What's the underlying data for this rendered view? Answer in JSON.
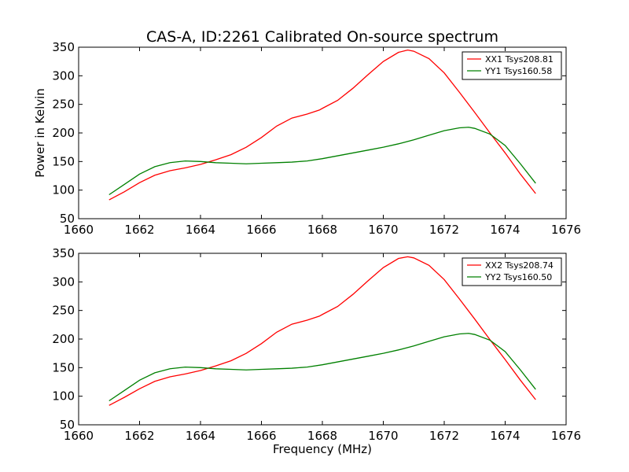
{
  "figure": {
    "title": "CAS-A, ID:2261 Calibrated On-source spectrum",
    "xlabel": "Frequency (MHz)",
    "ylabel": "Power in Kelvin"
  },
  "chart_data": [
    {
      "type": "line",
      "title": "CAS-A, ID:2261 Calibrated On-source spectrum",
      "xlabel": "",
      "ylabel": "Power in Kelvin",
      "xlim": [
        1660,
        1676
      ],
      "ylim": [
        50,
        350
      ],
      "x_ticks": [
        1660,
        1662,
        1664,
        1666,
        1668,
        1670,
        1672,
        1674,
        1676
      ],
      "y_ticks": [
        50,
        100,
        150,
        200,
        250,
        300,
        350
      ],
      "grid": false,
      "legend_position": "top-right",
      "series": [
        {
          "name": "XX1 Tsys208.81",
          "color": "#ff0000",
          "points": [
            [
              1661.0,
              83
            ],
            [
              1661.5,
              97
            ],
            [
              1662.0,
              113
            ],
            [
              1662.5,
              126
            ],
            [
              1663.0,
              134
            ],
            [
              1663.5,
              139
            ],
            [
              1664.0,
              145
            ],
            [
              1664.5,
              153
            ],
            [
              1665.0,
              162
            ],
            [
              1665.5,
              175
            ],
            [
              1666.0,
              192
            ],
            [
              1666.5,
              212
            ],
            [
              1667.0,
              226
            ],
            [
              1667.5,
              233
            ],
            [
              1667.9,
              240
            ],
            [
              1668.0,
              243
            ],
            [
              1668.5,
              257
            ],
            [
              1669.0,
              278
            ],
            [
              1669.5,
              302
            ],
            [
              1670.0,
              325
            ],
            [
              1670.5,
              341
            ],
            [
              1670.8,
              345
            ],
            [
              1671.0,
              343
            ],
            [
              1671.5,
              330
            ],
            [
              1672.0,
              305
            ],
            [
              1672.5,
              271
            ],
            [
              1673.0,
              236
            ],
            [
              1673.5,
              200
            ],
            [
              1674.0,
              165
            ],
            [
              1674.5,
              128
            ],
            [
              1675.0,
              94
            ]
          ]
        },
        {
          "name": "YY1 Tsys160.58",
          "color": "#008000",
          "points": [
            [
              1661.0,
              92
            ],
            [
              1661.5,
              110
            ],
            [
              1662.0,
              128
            ],
            [
              1662.5,
              141
            ],
            [
              1663.0,
              148
            ],
            [
              1663.5,
              151
            ],
            [
              1664.0,
              150
            ],
            [
              1664.5,
              148
            ],
            [
              1665.0,
              147
            ],
            [
              1665.5,
              146
            ],
            [
              1666.0,
              147
            ],
            [
              1666.5,
              148
            ],
            [
              1667.0,
              149
            ],
            [
              1667.5,
              151
            ],
            [
              1668.0,
              155
            ],
            [
              1668.5,
              160
            ],
            [
              1669.0,
              165
            ],
            [
              1669.5,
              170
            ],
            [
              1670.0,
              175
            ],
            [
              1670.5,
              181
            ],
            [
              1671.0,
              188
            ],
            [
              1671.5,
              196
            ],
            [
              1672.0,
              204
            ],
            [
              1672.5,
              209
            ],
            [
              1672.8,
              210
            ],
            [
              1673.0,
              208
            ],
            [
              1673.5,
              198
            ],
            [
              1674.0,
              178
            ],
            [
              1674.5,
              146
            ],
            [
              1675.0,
              112
            ]
          ]
        }
      ]
    },
    {
      "type": "line",
      "title": "",
      "xlabel": "Frequency (MHz)",
      "ylabel": "",
      "xlim": [
        1660,
        1676
      ],
      "ylim": [
        50,
        350
      ],
      "x_ticks": [
        1660,
        1662,
        1664,
        1666,
        1668,
        1670,
        1672,
        1674,
        1676
      ],
      "y_ticks": [
        50,
        100,
        150,
        200,
        250,
        300,
        350
      ],
      "grid": false,
      "legend_position": "top-right",
      "series": [
        {
          "name": "XX2 Tsys208.74",
          "color": "#ff0000",
          "points": [
            [
              1661.0,
              84
            ],
            [
              1661.5,
              98
            ],
            [
              1662.0,
              113
            ],
            [
              1662.5,
              126
            ],
            [
              1663.0,
              134
            ],
            [
              1663.5,
              139
            ],
            [
              1664.0,
              145
            ],
            [
              1664.5,
              153
            ],
            [
              1665.0,
              162
            ],
            [
              1665.5,
              175
            ],
            [
              1666.0,
              192
            ],
            [
              1666.5,
              212
            ],
            [
              1667.0,
              226
            ],
            [
              1667.5,
              233
            ],
            [
              1667.9,
              240
            ],
            [
              1668.0,
              243
            ],
            [
              1668.5,
              257
            ],
            [
              1669.0,
              278
            ],
            [
              1669.5,
              302
            ],
            [
              1670.0,
              325
            ],
            [
              1670.5,
              341
            ],
            [
              1670.8,
              344
            ],
            [
              1671.0,
              342
            ],
            [
              1671.5,
              329
            ],
            [
              1672.0,
              304
            ],
            [
              1672.5,
              270
            ],
            [
              1673.0,
              235
            ],
            [
              1673.5,
              199
            ],
            [
              1674.0,
              164
            ],
            [
              1674.5,
              128
            ],
            [
              1675.0,
              94
            ]
          ]
        },
        {
          "name": "YY2 Tsys160.50",
          "color": "#008000",
          "points": [
            [
              1661.0,
              92
            ],
            [
              1661.5,
              110
            ],
            [
              1662.0,
              128
            ],
            [
              1662.5,
              141
            ],
            [
              1663.0,
              148
            ],
            [
              1663.5,
              151
            ],
            [
              1664.0,
              150
            ],
            [
              1664.5,
              148
            ],
            [
              1665.0,
              147
            ],
            [
              1665.5,
              146
            ],
            [
              1666.0,
              147
            ],
            [
              1666.5,
              148
            ],
            [
              1667.0,
              149
            ],
            [
              1667.5,
              151
            ],
            [
              1668.0,
              155
            ],
            [
              1668.5,
              160
            ],
            [
              1669.0,
              165
            ],
            [
              1669.5,
              170
            ],
            [
              1670.0,
              175
            ],
            [
              1670.5,
              181
            ],
            [
              1671.0,
              188
            ],
            [
              1671.5,
              196
            ],
            [
              1672.0,
              204
            ],
            [
              1672.5,
              209
            ],
            [
              1672.8,
              210
            ],
            [
              1673.0,
              208
            ],
            [
              1673.5,
              198
            ],
            [
              1674.0,
              178
            ],
            [
              1674.5,
              146
            ],
            [
              1675.0,
              112
            ]
          ]
        }
      ]
    }
  ]
}
